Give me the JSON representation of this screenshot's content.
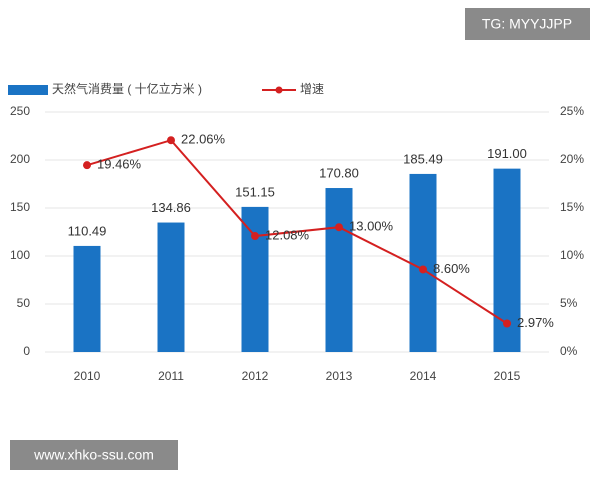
{
  "chart_data": {
    "type": "bar",
    "categories": [
      "2010",
      "2011",
      "2012",
      "2013",
      "2014",
      "2015"
    ],
    "series": [
      {
        "name": "天然气消费量 ( 十亿立方米 )",
        "type": "bar",
        "color": "#1a73c4",
        "values": [
          110.49,
          134.86,
          151.15,
          170.8,
          185.49,
          191.0
        ],
        "value_labels": [
          "110.49",
          "134.86",
          "151.15",
          "170.80",
          "185.49",
          "191.00"
        ]
      },
      {
        "name": "增速",
        "type": "line",
        "axis": "y2",
        "color": "#d42020",
        "values": [
          19.46,
          22.06,
          12.08,
          13.0,
          8.6,
          2.97
        ],
        "value_labels": [
          "19.46%",
          "22.06%",
          "12.08%",
          "13.00%",
          "8.60%",
          "2.97%"
        ]
      }
    ],
    "ylim": [
      0,
      250
    ],
    "yticks": [
      0,
      50,
      100,
      150,
      200,
      250
    ],
    "y2lim": [
      0,
      25
    ],
    "y2ticks": [
      {
        "value": 0,
        "label": "0%"
      },
      {
        "value": 5,
        "label": "5%"
      },
      {
        "value": 10,
        "label": "10%"
      },
      {
        "value": 15,
        "label": "15%"
      },
      {
        "value": 20,
        "label": "20%"
      },
      {
        "value": 25,
        "label": "25%"
      }
    ],
    "grid": true
  },
  "watermarks": {
    "top_right": "TG: MYYJJPP",
    "bottom_left": "www.xhko-ssu.com"
  }
}
